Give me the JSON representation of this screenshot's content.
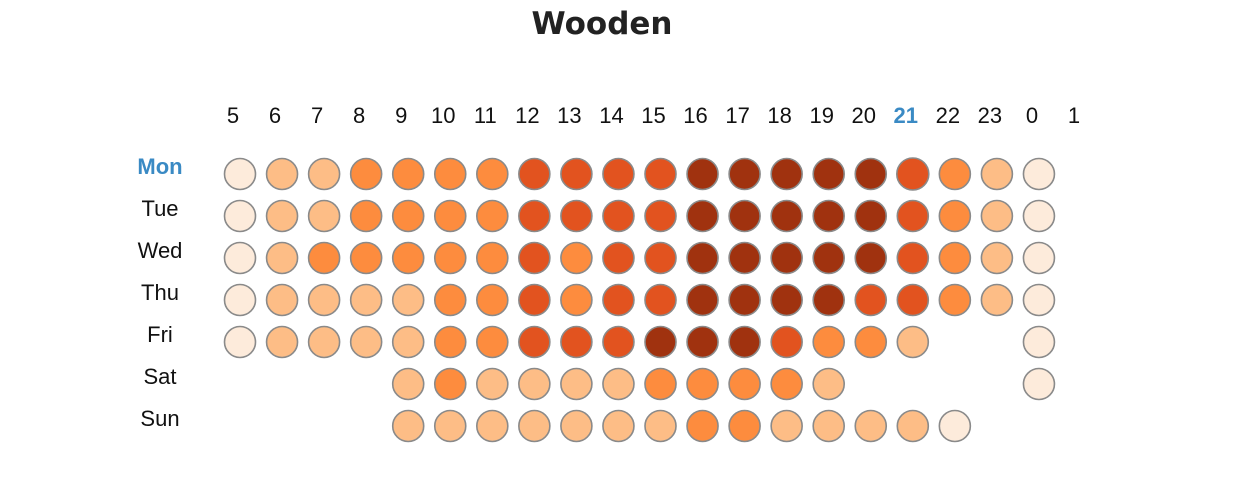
{
  "chart_data": {
    "type": "heatmap",
    "title": "Wooden",
    "x_labels": [
      5,
      6,
      7,
      8,
      9,
      10,
      11,
      12,
      13,
      14,
      15,
      16,
      17,
      18,
      19,
      20,
      21,
      22,
      23,
      0,
      1
    ],
    "y_labels": [
      "Mon",
      "Tue",
      "Wed",
      "Thu",
      "Fri",
      "Sat",
      "Sun"
    ],
    "levels": 6,
    "level_colors": [
      "#ffffff",
      "#fdebdb",
      "#fdbd86",
      "#fd8c3e",
      "#e2531f",
      "#a0320f"
    ],
    "values": [
      [
        1,
        2,
        2,
        3,
        3,
        3,
        3,
        4,
        4,
        4,
        4,
        5,
        5,
        5,
        5,
        5,
        4,
        3,
        2,
        1,
        null
      ],
      [
        1,
        2,
        2,
        3,
        3,
        3,
        3,
        4,
        4,
        4,
        4,
        5,
        5,
        5,
        5,
        5,
        4,
        3,
        2,
        1,
        null
      ],
      [
        1,
        2,
        3,
        3,
        3,
        3,
        3,
        4,
        3,
        4,
        4,
        5,
        5,
        5,
        5,
        5,
        4,
        3,
        2,
        1,
        null
      ],
      [
        1,
        2,
        2,
        2,
        2,
        3,
        3,
        4,
        3,
        4,
        4,
        5,
        5,
        5,
        5,
        4,
        4,
        3,
        2,
        1,
        null
      ],
      [
        1,
        2,
        2,
        2,
        2,
        3,
        3,
        4,
        4,
        4,
        5,
        5,
        5,
        4,
        3,
        3,
        2,
        null,
        null,
        1,
        null
      ],
      [
        null,
        null,
        null,
        null,
        2,
        3,
        2,
        2,
        2,
        2,
        3,
        3,
        3,
        3,
        2,
        null,
        null,
        null,
        null,
        1,
        null
      ],
      [
        null,
        null,
        null,
        null,
        2,
        2,
        2,
        2,
        2,
        2,
        2,
        3,
        3,
        2,
        2,
        2,
        2,
        1,
        null,
        null,
        null
      ]
    ],
    "highlight": {
      "day": "Mon",
      "hour": 21
    },
    "highlight_color": "#3a8ac4",
    "cell_border_color": "#8a8a8a"
  }
}
